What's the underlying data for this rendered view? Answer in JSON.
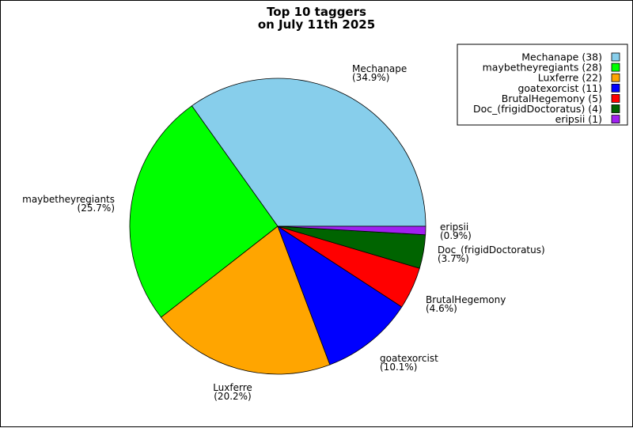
{
  "chart_data": {
    "type": "pie",
    "title": [
      "Top 10 taggers",
      "on July 11th 2025"
    ],
    "legend_position": "top-right",
    "slices": [
      {
        "name": "Mechanape",
        "value": 38,
        "percent": "34.9%",
        "color": "#87ceeb",
        "legend": "Mechanape (38)",
        "label_pct": "(34.9%)"
      },
      {
        "name": "maybetheyregiants",
        "value": 28,
        "percent": "25.7%",
        "color": "#00ff00",
        "legend": "maybetheyregiants (28)",
        "label_pct": "(25.7%)"
      },
      {
        "name": "Luxferre",
        "value": 22,
        "percent": "20.2%",
        "color": "#ffa500",
        "legend": "Luxferre (22)",
        "label_pct": "(20.2%)"
      },
      {
        "name": "goatexorcist",
        "value": 11,
        "percent": "10.1%",
        "color": "#0000ff",
        "legend": "goatexorcist (11)",
        "label_pct": "(10.1%)"
      },
      {
        "name": "BrutalHegemony",
        "value": 5,
        "percent": "4.6%",
        "color": "#ff0000",
        "legend": "BrutalHegemony (5)",
        "label_pct": "(4.6%)"
      },
      {
        "name": "Doc_(frigidDoctoratus)",
        "value": 4,
        "percent": "3.7%",
        "color": "#006400",
        "legend": "Doc_(frigidDoctoratus) (4)",
        "label_pct": "(3.7%)"
      },
      {
        "name": "eripsii",
        "value": 1,
        "percent": "0.9%",
        "color": "#a020f0",
        "legend": "eripsii (1)",
        "label_pct": "(0.9%)"
      }
    ]
  }
}
